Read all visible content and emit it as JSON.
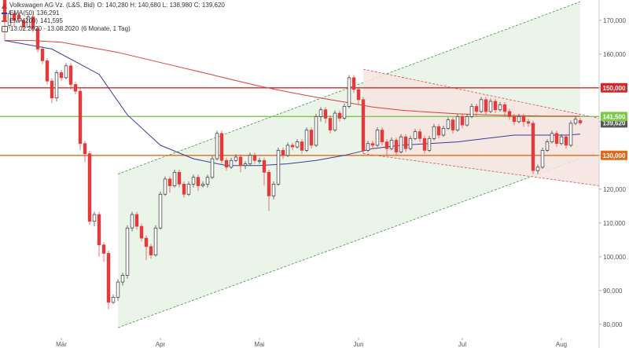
{
  "header": {
    "instrument": "Volkswagen AG Vz. (L&S, Bid)",
    "ohlc": "O: 140,280  H: 140,680  L: 138,980  C: 139,620",
    "ema50_label": "EMA(50)",
    "ema50_value": "136,291",
    "ema200_label": "EMA(200)",
    "ema200_value": "141,595",
    "period": "13.02.2020 - 13.08.2020",
    "interval": "(6 Monate, 1 Tag)"
  },
  "chart_data": {
    "type": "candlestick",
    "y_range": [
      76000,
      176000
    ],
    "y_ticks": [
      "80,000",
      "90,000",
      "100,000",
      "110,000",
      "120,000",
      "130,000",
      "140,000",
      "150,000",
      "160,000",
      "170,000"
    ],
    "y_tick_values": [
      80000,
      90000,
      100000,
      110000,
      120000,
      130000,
      140000,
      150000,
      160000,
      170000
    ],
    "x_ticks": [
      "Mär",
      "Apr",
      "Mai",
      "Jun",
      "Jul",
      "Aug"
    ],
    "x_tick_index": [
      12,
      33,
      54,
      75,
      97,
      118
    ],
    "n_days": 127,
    "colors": {
      "up_fill": "#ffffff",
      "up_stroke": "#333333",
      "down_fill": "#e23b3b",
      "ema50": "#3b3b9a",
      "ema200": "#d94040",
      "level_red": "#d62828",
      "level_green": "#7cc94a",
      "level_orange": "#e06a1a",
      "channel_green": "#e8f3e6",
      "channel_red": "#f7e4e1"
    },
    "levels": [
      {
        "name": "150,000",
        "value": 150000,
        "color": "#d62828"
      },
      {
        "name": "141,500",
        "value": 141500,
        "color": "#7cc94a"
      },
      {
        "name": "130,000",
        "value": 130000,
        "color": "#e06a1a"
      }
    ],
    "last_price_label": "139,620",
    "last_price_value": 139620,
    "green_channel": {
      "start_index": 24,
      "end_index": 122,
      "lower_start": 79000,
      "lower_end": 129000,
      "upper_start": 124500,
      "upper_end": 175500
    },
    "red_channel": {
      "start_index": 76,
      "end_index": 127,
      "upper_start": 155500,
      "upper_end": 141000,
      "lower_start": 130500,
      "lower_end": 121000
    },
    "candles": [
      [
        0,
        176000,
        170000,
        164000
      ],
      [
        1,
        168500,
        172000,
        167500
      ],
      [
        2,
        172000,
        170000,
        168000
      ],
      [
        3,
        171500,
        170500,
        169500
      ],
      [
        4,
        170000,
        168000,
        167000
      ],
      [
        5,
        168000,
        171000,
        169500
      ],
      [
        6,
        171000,
        167500,
        166500
      ],
      [
        7,
        167500,
        161500,
        160500
      ],
      [
        8,
        161500,
        158000,
        157000
      ],
      [
        9,
        158000,
        152000,
        151000
      ],
      [
        10,
        152000,
        147000,
        145500
      ],
      [
        11,
        147000,
        154500,
        146000
      ],
      [
        12,
        154500,
        153000,
        152000
      ],
      [
        13,
        153000,
        156500,
        152500
      ],
      [
        14,
        156500,
        151000,
        149500
      ],
      [
        15,
        151000,
        149000,
        148000
      ],
      [
        16,
        149000,
        133500,
        131500
      ],
      [
        17,
        133500,
        130500,
        128000
      ],
      [
        18,
        130500,
        110500,
        109500
      ],
      [
        19,
        110500,
        112500,
        109000
      ],
      [
        20,
        112500,
        103500,
        100000
      ],
      [
        21,
        103500,
        101000,
        98500
      ],
      [
        22,
        101000,
        86500,
        84500
      ],
      [
        23,
        86500,
        88000,
        86000
      ],
      [
        24,
        88000,
        92500,
        87000
      ],
      [
        25,
        92500,
        94500,
        91500
      ],
      [
        26,
        94500,
        108500,
        93500
      ],
      [
        27,
        108500,
        112500,
        107500
      ],
      [
        28,
        112500,
        109000,
        108000
      ],
      [
        29,
        109000,
        105500,
        104500
      ],
      [
        30,
        105500,
        103000,
        99000
      ],
      [
        31,
        103000,
        100500,
        99500
      ],
      [
        32,
        100500,
        108500,
        100000
      ],
      [
        33,
        108500,
        118500,
        108000
      ],
      [
        34,
        118500,
        123000,
        118000
      ],
      [
        35,
        123000,
        121000,
        119000
      ],
      [
        36,
        121000,
        125000,
        120500
      ],
      [
        37,
        125000,
        121500,
        120500
      ],
      [
        38,
        121500,
        118500,
        117500
      ],
      [
        39,
        118500,
        121500,
        118000
      ],
      [
        40,
        121500,
        123500,
        120500
      ],
      [
        41,
        123500,
        121000,
        119500
      ],
      [
        42,
        121000,
        121500,
        120500
      ],
      [
        43,
        121500,
        123500,
        120500
      ],
      [
        44,
        123500,
        129000,
        123000
      ],
      [
        45,
        129000,
        136500,
        128500
      ],
      [
        46,
        136500,
        128500,
        127500
      ],
      [
        47,
        128500,
        126500,
        125500
      ],
      [
        48,
        126500,
        128500,
        126000
      ],
      [
        49,
        128500,
        129500,
        128000
      ],
      [
        50,
        129500,
        127000,
        125000
      ],
      [
        51,
        127000,
        127500,
        126000
      ],
      [
        52,
        127500,
        130000,
        127000
      ],
      [
        53,
        130000,
        128500,
        127500
      ],
      [
        54,
        128500,
        128500,
        127500
      ],
      [
        55,
        128500,
        125000,
        121000
      ],
      [
        56,
        125000,
        118000,
        113500
      ],
      [
        57,
        118000,
        121500,
        117000
      ],
      [
        58,
        121500,
        131500,
        121000
      ],
      [
        59,
        131500,
        130000,
        129000
      ],
      [
        60,
        130000,
        133000,
        129500
      ],
      [
        61,
        133000,
        132500,
        131500
      ],
      [
        62,
        132500,
        134000,
        132000
      ],
      [
        63,
        134000,
        131500,
        130500
      ],
      [
        64,
        131500,
        137500,
        131000
      ],
      [
        65,
        137500,
        133000,
        132000
      ],
      [
        66,
        133000,
        141500,
        132500
      ],
      [
        67,
        141500,
        143500,
        140000
      ],
      [
        68,
        143500,
        141000,
        139500
      ],
      [
        69,
        141000,
        137500,
        136500
      ],
      [
        70,
        137500,
        142500,
        137000
      ],
      [
        71,
        142500,
        141000,
        140000
      ],
      [
        72,
        141000,
        144500,
        140500
      ],
      [
        73,
        144500,
        153000,
        144000
      ],
      [
        74,
        153000,
        149500,
        148500
      ],
      [
        75,
        149500,
        146500,
        145000
      ],
      [
        76,
        146500,
        131500,
        130500
      ],
      [
        77,
        131500,
        133500,
        131000
      ],
      [
        78,
        133500,
        133000,
        132000
      ],
      [
        79,
        133000,
        137500,
        132500
      ],
      [
        80,
        137500,
        134000,
        133000
      ],
      [
        81,
        134000,
        132000,
        130000
      ],
      [
        82,
        132000,
        134500,
        131500
      ],
      [
        83,
        134500,
        131000,
        130000
      ],
      [
        84,
        131000,
        135500,
        130500
      ],
      [
        85,
        135500,
        132000,
        131000
      ],
      [
        86,
        132000,
        135000,
        131500
      ],
      [
        87,
        135000,
        137000,
        134500
      ],
      [
        88,
        137000,
        135000,
        134000
      ],
      [
        89,
        135000,
        131500,
        130500
      ],
      [
        90,
        131500,
        135000,
        131000
      ],
      [
        91,
        135000,
        138500,
        134500
      ],
      [
        92,
        138500,
        136000,
        135000
      ],
      [
        93,
        136000,
        138000,
        135500
      ],
      [
        94,
        138000,
        140500,
        137500
      ],
      [
        95,
        140500,
        137500,
        136500
      ],
      [
        96,
        137500,
        141500,
        137000
      ],
      [
        97,
        141500,
        139000,
        138000
      ],
      [
        98,
        139000,
        141500,
        138500
      ],
      [
        99,
        141500,
        144500,
        141000
      ],
      [
        100,
        144500,
        143000,
        141500
      ],
      [
        101,
        143000,
        146500,
        142500
      ],
      [
        102,
        146500,
        143000,
        142000
      ],
      [
        103,
        143000,
        146000,
        142500
      ],
      [
        104,
        146000,
        143500,
        142500
      ],
      [
        105,
        143500,
        145000,
        143000
      ],
      [
        106,
        145000,
        143000,
        141500
      ],
      [
        107,
        143000,
        141500,
        140500
      ],
      [
        108,
        141500,
        140000,
        139000
      ],
      [
        109,
        140000,
        141500,
        139500
      ],
      [
        110,
        141500,
        140000,
        138500
      ],
      [
        111,
        140000,
        139500,
        138500
      ],
      [
        112,
        139500,
        125500,
        124500
      ],
      [
        113,
        125500,
        126500,
        124500
      ],
      [
        114,
        126500,
        131500,
        126000
      ],
      [
        115,
        131500,
        134000,
        131000
      ],
      [
        116,
        134000,
        136500,
        133500
      ],
      [
        117,
        136500,
        133500,
        132500
      ],
      [
        118,
        133500,
        135500,
        133000
      ],
      [
        119,
        135500,
        133000,
        132000
      ],
      [
        120,
        133000,
        139500,
        132500
      ],
      [
        121,
        139500,
        140700,
        139000
      ],
      [
        122,
        140280,
        139620,
        138980
      ]
    ],
    "ema50": [
      [
        0,
        164000
      ],
      [
        10,
        161500
      ],
      [
        20,
        154000
      ],
      [
        26,
        142000
      ],
      [
        33,
        133000
      ],
      [
        40,
        129000
      ],
      [
        47,
        127000
      ],
      [
        54,
        127000
      ],
      [
        60,
        127500
      ],
      [
        66,
        128500
      ],
      [
        72,
        130000
      ],
      [
        78,
        132000
      ],
      [
        84,
        133000
      ],
      [
        90,
        133500
      ],
      [
        96,
        134000
      ],
      [
        102,
        135000
      ],
      [
        108,
        136000
      ],
      [
        114,
        136000
      ],
      [
        119,
        136000
      ],
      [
        122,
        136291
      ]
    ],
    "ema200": [
      [
        0,
        164000
      ],
      [
        6,
        164000
      ],
      [
        12,
        163500
      ],
      [
        18,
        162000
      ],
      [
        24,
        160500
      ],
      [
        30,
        158500
      ],
      [
        36,
        156500
      ],
      [
        42,
        154500
      ],
      [
        48,
        152500
      ],
      [
        54,
        150500
      ],
      [
        60,
        148800
      ],
      [
        66,
        147200
      ],
      [
        72,
        145800
      ],
      [
        78,
        144300
      ],
      [
        84,
        143400
      ],
      [
        90,
        142800
      ],
      [
        96,
        142300
      ],
      [
        102,
        142000
      ],
      [
        108,
        141800
      ],
      [
        114,
        141650
      ],
      [
        122,
        141595
      ]
    ]
  }
}
